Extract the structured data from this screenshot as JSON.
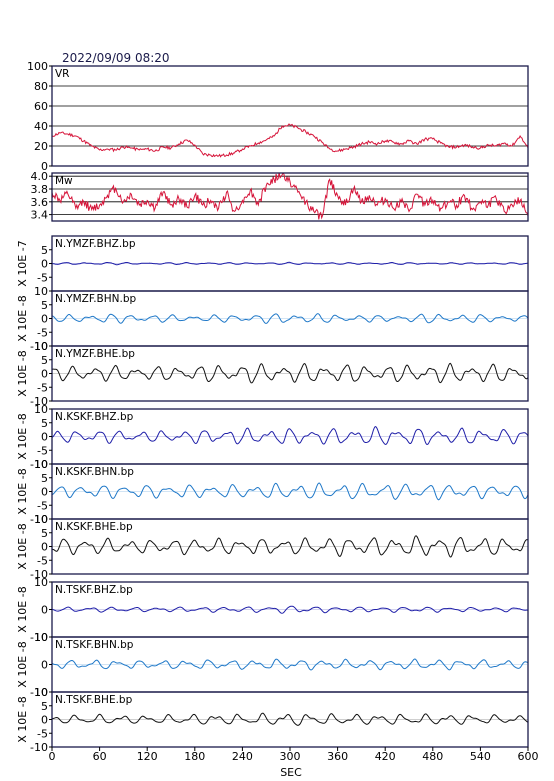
{
  "header": {
    "timestamp": "2022/09/09 08:20"
  },
  "chart_data": {
    "type": "line",
    "xlabel": "SEC",
    "xlim": [
      0,
      600
    ],
    "x_ticks": [
      0,
      60,
      120,
      180,
      240,
      300,
      360,
      420,
      480,
      540,
      600
    ],
    "panels": [
      {
        "id": "vr",
        "label": "VR",
        "ylim": [
          0,
          100
        ],
        "yticks": [
          0,
          20,
          40,
          60,
          80,
          100
        ],
        "grid": true,
        "color": "#d6153a",
        "points": [
          [
            0,
            30
          ],
          [
            10,
            33
          ],
          [
            20,
            32
          ],
          [
            30,
            30
          ],
          [
            40,
            25
          ],
          [
            50,
            20
          ],
          [
            60,
            16
          ],
          [
            70,
            17
          ],
          [
            80,
            16
          ],
          [
            90,
            19
          ],
          [
            100,
            18
          ],
          [
            110,
            16
          ],
          [
            120,
            17
          ],
          [
            130,
            15
          ],
          [
            140,
            19
          ],
          [
            150,
            18
          ],
          [
            160,
            22
          ],
          [
            170,
            26
          ],
          [
            180,
            21
          ],
          [
            190,
            12
          ],
          [
            200,
            11
          ],
          [
            210,
            10
          ],
          [
            220,
            11
          ],
          [
            230,
            13
          ],
          [
            240,
            17
          ],
          [
            250,
            20
          ],
          [
            260,
            23
          ],
          [
            270,
            26
          ],
          [
            280,
            30
          ],
          [
            290,
            40
          ],
          [
            300,
            41
          ],
          [
            310,
            38
          ],
          [
            320,
            34
          ],
          [
            330,
            30
          ],
          [
            340,
            24
          ],
          [
            350,
            17
          ],
          [
            360,
            15
          ],
          [
            370,
            17
          ],
          [
            380,
            19
          ],
          [
            390,
            22
          ],
          [
            400,
            24
          ],
          [
            410,
            22
          ],
          [
            420,
            25
          ],
          [
            430,
            24
          ],
          [
            440,
            22
          ],
          [
            450,
            25
          ],
          [
            460,
            22
          ],
          [
            470,
            27
          ],
          [
            480,
            27
          ],
          [
            490,
            23
          ],
          [
            500,
            19
          ],
          [
            510,
            19
          ],
          [
            520,
            21
          ],
          [
            530,
            19
          ],
          [
            540,
            18
          ],
          [
            550,
            21
          ],
          [
            560,
            20
          ],
          [
            570,
            23
          ],
          [
            580,
            20
          ],
          [
            590,
            30
          ],
          [
            600,
            18
          ]
        ]
      },
      {
        "id": "mw",
        "label": "Mw",
        "ylim": [
          3.3,
          4.05
        ],
        "yticks": [
          3.4,
          3.6,
          3.8,
          4.0
        ],
        "ytick_labels": [
          "3.4",
          "3.6",
          "3.8",
          "4.0"
        ],
        "grid": true,
        "color": "#d6153a",
        "points": [
          [
            0,
            3.75
          ],
          [
            10,
            3.62
          ],
          [
            20,
            3.72
          ],
          [
            30,
            3.5
          ],
          [
            40,
            3.6
          ],
          [
            50,
            3.48
          ],
          [
            60,
            3.55
          ],
          [
            70,
            3.7
          ],
          [
            80,
            3.82
          ],
          [
            90,
            3.6
          ],
          [
            100,
            3.72
          ],
          [
            110,
            3.55
          ],
          [
            120,
            3.62
          ],
          [
            130,
            3.5
          ],
          [
            140,
            3.75
          ],
          [
            150,
            3.55
          ],
          [
            160,
            3.65
          ],
          [
            170,
            3.52
          ],
          [
            180,
            3.7
          ],
          [
            190,
            3.55
          ],
          [
            200,
            3.62
          ],
          [
            210,
            3.5
          ],
          [
            220,
            3.75
          ],
          [
            230,
            3.45
          ],
          [
            240,
            3.62
          ],
          [
            250,
            3.78
          ],
          [
            260,
            3.55
          ],
          [
            270,
            3.85
          ],
          [
            280,
            3.95
          ],
          [
            290,
            4.02
          ],
          [
            300,
            3.92
          ],
          [
            310,
            3.75
          ],
          [
            320,
            3.6
          ],
          [
            330,
            3.45
          ],
          [
            340,
            3.35
          ],
          [
            350,
            3.95
          ],
          [
            360,
            3.7
          ],
          [
            370,
            3.55
          ],
          [
            380,
            3.8
          ],
          [
            390,
            3.6
          ],
          [
            400,
            3.7
          ],
          [
            410,
            3.55
          ],
          [
            420,
            3.65
          ],
          [
            430,
            3.5
          ],
          [
            440,
            3.6
          ],
          [
            450,
            3.45
          ],
          [
            460,
            3.72
          ],
          [
            470,
            3.55
          ],
          [
            480,
            3.62
          ],
          [
            490,
            3.5
          ],
          [
            500,
            3.6
          ],
          [
            510,
            3.55
          ],
          [
            520,
            3.7
          ],
          [
            530,
            3.48
          ],
          [
            540,
            3.6
          ],
          [
            550,
            3.55
          ],
          [
            560,
            3.65
          ],
          [
            570,
            3.45
          ],
          [
            580,
            3.55
          ],
          [
            590,
            3.62
          ],
          [
            600,
            3.38
          ]
        ]
      },
      {
        "id": "ymzf-bhz",
        "label": "N.YMZF.BHZ.bp",
        "ylabel": "X 10E -7",
        "ylim": [
          -10,
          10
        ],
        "yticks": [
          -5,
          0,
          5
        ],
        "ytick_labels": [
          "-5",
          "0",
          "5"
        ],
        "color": "#1e1ea8",
        "amp": [
          0.3,
          0.5,
          0.3,
          0.4,
          0.3,
          0.4,
          0.3,
          0.4,
          0.3,
          0.3,
          0.3
        ],
        "seed": 1
      },
      {
        "id": "ymzf-bhn",
        "label": "N.YMZF.BHN.bp",
        "ylabel": "X 10E -8",
        "ylim": [
          -10,
          10
        ],
        "yticks": [
          -10,
          -5,
          0,
          5,
          10
        ],
        "ytick_labels": [
          "-10",
          "-5",
          "0",
          "5",
          "10"
        ],
        "color": "#1f78c8",
        "amp": [
          1.2,
          1.8,
          1.5,
          1.2,
          1.5,
          2.0,
          1.5,
          1.2,
          1.8,
          1.5,
          1.2
        ],
        "seed": 2
      },
      {
        "id": "ymzf-bhe",
        "label": "N.YMZF.BHE.bp",
        "ylabel": "X 10E -8",
        "ylim": [
          -10,
          10
        ],
        "yticks": [
          -10,
          -5,
          0,
          5,
          10
        ],
        "ytick_labels": [
          "-10",
          "-5",
          "0",
          "5",
          "10"
        ],
        "color": "#111111",
        "amp": [
          2.5,
          3.0,
          2.5,
          3.0,
          3.5,
          3.5,
          3.5,
          3.0,
          3.5,
          3.5,
          3.0
        ],
        "seed": 3
      },
      {
        "id": "kskf-bhz",
        "label": "N.KSKF.BHZ.bp",
        "ylabel": "X 10E -8",
        "ylim": [
          -10,
          10
        ],
        "yticks": [
          -10,
          -5,
          0,
          5,
          10
        ],
        "ytick_labels": [
          "-10",
          "-5",
          "0",
          "5",
          "10"
        ],
        "color": "#1e1ea8",
        "amp": [
          2.0,
          2.5,
          2.0,
          2.5,
          3.0,
          3.0,
          3.0,
          3.5,
          3.0,
          3.0,
          2.5
        ],
        "seed": 4
      },
      {
        "id": "kskf-bhn",
        "label": "N.KSKF.BHN.bp",
        "ylabel": "X 10E -8",
        "ylim": [
          -10,
          10
        ],
        "yticks": [
          -10,
          -5,
          0,
          5,
          10
        ],
        "ytick_labels": [
          "-10",
          "-5",
          "0",
          "5",
          "10"
        ],
        "color": "#1f78c8",
        "amp": [
          2.0,
          2.5,
          2.5,
          2.5,
          2.5,
          3.0,
          3.0,
          3.0,
          3.0,
          2.5,
          2.5
        ],
        "seed": 5
      },
      {
        "id": "kskf-bhe",
        "label": "N.KSKF.BHE.bp",
        "ylabel": "X 10E -8",
        "ylim": [
          -10,
          10
        ],
        "yticks": [
          -10,
          -5,
          0,
          5,
          10
        ],
        "ytick_labels": [
          "-10",
          "-5",
          "0",
          "5",
          "10"
        ],
        "color": "#111111",
        "amp": [
          3.0,
          3.0,
          2.5,
          3.0,
          3.0,
          3.0,
          3.5,
          3.5,
          4.0,
          3.5,
          3.0
        ],
        "seed": 6
      },
      {
        "id": "tskf-bhz",
        "label": "N.TSKF.BHZ.bp",
        "ylabel": "X 10E -8",
        "ylim": [
          -10,
          10
        ],
        "yticks": [
          -10,
          0,
          10
        ],
        "ytick_labels": [
          "-10",
          "0",
          "10"
        ],
        "color": "#1e1ea8",
        "amp": [
          0.8,
          1.0,
          0.8,
          1.0,
          1.0,
          1.5,
          1.0,
          1.0,
          1.0,
          0.8,
          0.8
        ],
        "seed": 7
      },
      {
        "id": "tskf-bhn",
        "label": "N.TSKF.BHN.bp",
        "ylabel": "X 10E -8",
        "ylim": [
          -10,
          10
        ],
        "yticks": [
          -10,
          0,
          10
        ],
        "ytick_labels": [
          "-10",
          "0",
          "10"
        ],
        "color": "#1f78c8",
        "amp": [
          1.5,
          1.8,
          1.5,
          1.8,
          1.8,
          2.0,
          1.8,
          1.8,
          2.0,
          1.8,
          1.5
        ],
        "seed": 8
      },
      {
        "id": "tskf-bhe",
        "label": "N.TSKF.BHE.bp",
        "ylabel": "X 10E -8",
        "ylim": [
          -10,
          10
        ],
        "yticks": [
          -10,
          -5,
          0,
          5,
          10
        ],
        "ytick_labels": [
          "-10",
          "-5",
          "0",
          "5",
          "10"
        ],
        "color": "#111111",
        "amp": [
          1.5,
          1.8,
          1.5,
          2.0,
          2.0,
          2.5,
          2.0,
          2.0,
          2.0,
          1.8,
          1.5
        ],
        "seed": 9
      }
    ]
  }
}
